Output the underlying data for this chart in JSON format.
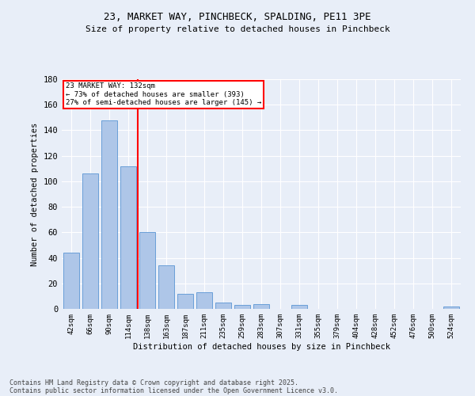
{
  "title_line1": "23, MARKET WAY, PINCHBECK, SPALDING, PE11 3PE",
  "title_line2": "Size of property relative to detached houses in Pinchbeck",
  "xlabel": "Distribution of detached houses by size in Pinchbeck",
  "ylabel": "Number of detached properties",
  "categories": [
    "42sqm",
    "66sqm",
    "90sqm",
    "114sqm",
    "138sqm",
    "163sqm",
    "187sqm",
    "211sqm",
    "235sqm",
    "259sqm",
    "283sqm",
    "307sqm",
    "331sqm",
    "355sqm",
    "379sqm",
    "404sqm",
    "428sqm",
    "452sqm",
    "476sqm",
    "500sqm",
    "524sqm"
  ],
  "values": [
    44,
    106,
    148,
    112,
    60,
    34,
    12,
    13,
    5,
    3,
    4,
    0,
    3,
    0,
    0,
    0,
    0,
    0,
    0,
    0,
    2
  ],
  "bar_color": "#aec6e8",
  "bar_edge_color": "#6a9fd8",
  "vline_x": 3.5,
  "vline_color": "red",
  "annotation_text": "23 MARKET WAY: 132sqm\n← 73% of detached houses are smaller (393)\n27% of semi-detached houses are larger (145) →",
  "annotation_box_color": "white",
  "annotation_box_edge": "red",
  "ylim": [
    0,
    180
  ],
  "yticks": [
    0,
    20,
    40,
    60,
    80,
    100,
    120,
    140,
    160,
    180
  ],
  "footer_line1": "Contains HM Land Registry data © Crown copyright and database right 2025.",
  "footer_line2": "Contains public sector information licensed under the Open Government Licence v3.0.",
  "background_color": "#e8eef8",
  "grid_color": "white"
}
